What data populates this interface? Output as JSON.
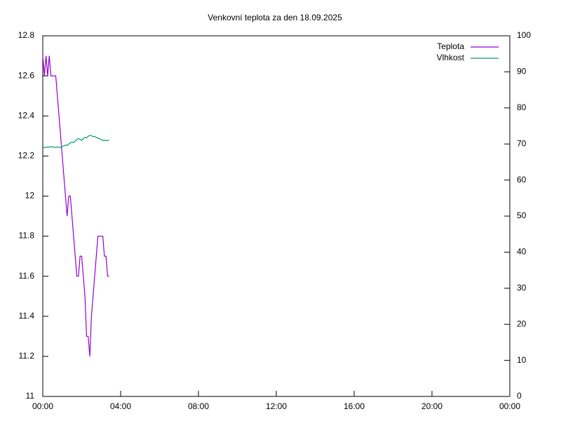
{
  "chart_data": {
    "type": "line",
    "title": "Venkovní teplota za den 18.09.2025",
    "x": [
      0,
      5,
      10,
      15,
      20,
      25,
      30,
      35,
      40,
      45,
      50,
      55,
      60,
      65,
      70,
      75,
      80,
      85,
      90,
      95,
      100,
      105,
      110,
      115,
      120,
      125,
      130,
      135,
      140,
      145,
      150,
      155,
      160,
      165,
      170,
      175,
      180,
      185,
      190,
      195,
      200,
      205
    ],
    "series": [
      {
        "name": "Teplota",
        "color": "#9400d3",
        "values": [
          12.7,
          12.6,
          12.7,
          12.6,
          12.7,
          12.6,
          12.6,
          12.6,
          12.6,
          12.5,
          12.4,
          12.3,
          12.2,
          12.1,
          12.0,
          11.9,
          12.0,
          12.0,
          11.9,
          11.8,
          11.7,
          11.6,
          11.6,
          11.7,
          11.7,
          11.6,
          11.5,
          11.3,
          11.3,
          11.2,
          11.4,
          11.5,
          11.6,
          11.7,
          11.8,
          11.8,
          11.8,
          11.8,
          11.7,
          11.7,
          11.6,
          11.6
        ]
      },
      {
        "name": "Vlhkost",
        "color": "#009e73",
        "axis": "y2",
        "values": [
          68.8,
          69.1,
          69.0,
          69.2,
          69.1,
          69.3,
          69.2,
          69.1,
          69.0,
          69.2,
          69.1,
          69.0,
          69.3,
          69.5,
          69.7,
          69.6,
          70.0,
          70.3,
          70.5,
          70.4,
          70.8,
          71.2,
          71.5,
          71.3,
          71.0,
          71.5,
          71.8,
          71.7,
          72.1,
          72.4,
          72.3,
          72.0,
          72.1,
          71.8,
          71.6,
          71.5,
          71.2,
          71.0,
          71.1,
          70.9,
          71.0,
          71.1
        ]
      }
    ],
    "xlim": [
      0,
      1440
    ],
    "xticks": [
      {
        "value": 0,
        "label": "00:00"
      },
      {
        "value": 240,
        "label": "04:00"
      },
      {
        "value": 480,
        "label": "08:00"
      },
      {
        "value": 720,
        "label": "12:00"
      },
      {
        "value": 960,
        "label": "16:00"
      },
      {
        "value": 1200,
        "label": "20:00"
      },
      {
        "value": 1440,
        "label": "00:00"
      }
    ],
    "ylim": [
      11,
      12.8
    ],
    "yticks": [
      11,
      11.2,
      11.4,
      11.6,
      11.8,
      12,
      12.2,
      12.4,
      12.6,
      12.8
    ],
    "y2lim": [
      0,
      100
    ],
    "y2ticks": [
      0,
      10,
      20,
      30,
      40,
      50,
      60,
      70,
      80,
      90,
      100
    ],
    "legend": "top-right",
    "grid": false
  }
}
